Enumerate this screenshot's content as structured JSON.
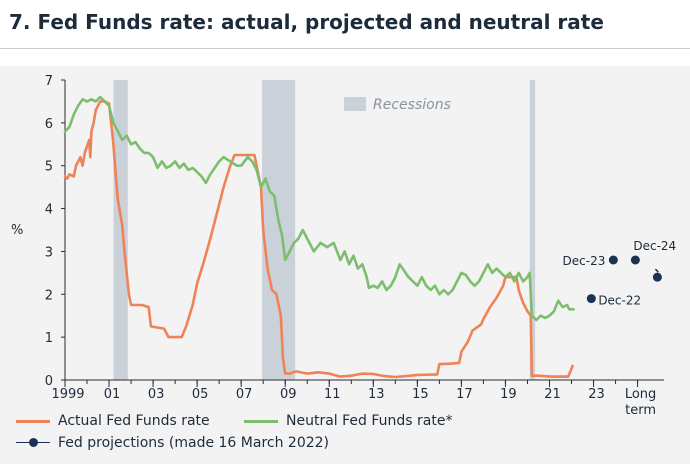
{
  "title": "7. Fed Funds rate: actual, projected and neutral rate",
  "colors": {
    "actual": "#f08257",
    "neutral": "#7dbe6e",
    "projection": "#1c3253",
    "recession": "#cbd1d8",
    "axis": "#2b2b2b",
    "panel_bg": "#f3f3f3"
  },
  "chart_data": {
    "type": "line",
    "ylabel": "%",
    "ylim": [
      0,
      7
    ],
    "y_ticks": [
      0,
      1,
      2,
      3,
      4,
      5,
      6,
      7
    ],
    "xlim": [
      1999,
      2026.2
    ],
    "x_ticks": [
      {
        "x": 1999,
        "label": "1999"
      },
      {
        "x": 2001,
        "label": "01"
      },
      {
        "x": 2003,
        "label": "03"
      },
      {
        "x": 2005,
        "label": "05"
      },
      {
        "x": 2007,
        "label": "07"
      },
      {
        "x": 2009,
        "label": "09"
      },
      {
        "x": 2011,
        "label": "11"
      },
      {
        "x": 2013,
        "label": "13"
      },
      {
        "x": 2015,
        "label": "15"
      },
      {
        "x": 2017,
        "label": "17"
      },
      {
        "x": 2019,
        "label": "19"
      },
      {
        "x": 2021,
        "label": "21"
      },
      {
        "x": 2023,
        "label": "23"
      },
      {
        "x": 2025,
        "label": "Long\nterm"
      }
    ],
    "recessions": [
      {
        "start": 2001.2,
        "end": 2001.85
      },
      {
        "start": 2007.95,
        "end": 2009.45
      },
      {
        "start": 2020.1,
        "end": 2020.35
      }
    ],
    "recession_label": "Recessions",
    "series": [
      {
        "name": "Actual Fed Funds rate",
        "points": [
          [
            1999.0,
            4.75
          ],
          [
            1999.1,
            4.7
          ],
          [
            1999.2,
            4.8
          ],
          [
            1999.4,
            4.75
          ],
          [
            1999.5,
            5.0
          ],
          [
            1999.7,
            5.2
          ],
          [
            1999.8,
            5.0
          ],
          [
            1999.9,
            5.3
          ],
          [
            2000.0,
            5.45
          ],
          [
            2000.1,
            5.6
          ],
          [
            2000.15,
            5.2
          ],
          [
            2000.2,
            5.8
          ],
          [
            2000.3,
            6.0
          ],
          [
            2000.4,
            6.3
          ],
          [
            2000.6,
            6.5
          ],
          [
            2000.8,
            6.5
          ],
          [
            2001.0,
            6.45
          ],
          [
            2001.1,
            6.0
          ],
          [
            2001.2,
            5.5
          ],
          [
            2001.3,
            4.8
          ],
          [
            2001.4,
            4.2
          ],
          [
            2001.5,
            3.9
          ],
          [
            2001.6,
            3.6
          ],
          [
            2001.7,
            3.0
          ],
          [
            2001.8,
            2.5
          ],
          [
            2001.9,
            2.0
          ],
          [
            2002.0,
            1.75
          ],
          [
            2002.5,
            1.75
          ],
          [
            2002.8,
            1.7
          ],
          [
            2002.9,
            1.25
          ],
          [
            2003.5,
            1.2
          ],
          [
            2003.7,
            1.0
          ],
          [
            2004.3,
            1.0
          ],
          [
            2004.5,
            1.25
          ],
          [
            2004.8,
            1.75
          ],
          [
            2005.0,
            2.25
          ],
          [
            2005.3,
            2.75
          ],
          [
            2005.6,
            3.3
          ],
          [
            2005.9,
            3.9
          ],
          [
            2006.2,
            4.5
          ],
          [
            2006.5,
            5.0
          ],
          [
            2006.7,
            5.25
          ],
          [
            2007.6,
            5.25
          ],
          [
            2007.7,
            5.0
          ],
          [
            2007.9,
            4.5
          ],
          [
            2008.0,
            3.5
          ],
          [
            2008.2,
            2.6
          ],
          [
            2008.4,
            2.1
          ],
          [
            2008.6,
            2.0
          ],
          [
            2008.8,
            1.5
          ],
          [
            2008.9,
            0.5
          ],
          [
            2009.0,
            0.15
          ],
          [
            2009.2,
            0.15
          ],
          [
            2009.5,
            0.2
          ],
          [
            2010.0,
            0.15
          ],
          [
            2010.5,
            0.18
          ],
          [
            2011.0,
            0.15
          ],
          [
            2011.5,
            0.08
          ],
          [
            2012.0,
            0.1
          ],
          [
            2012.5,
            0.15
          ],
          [
            2013.0,
            0.14
          ],
          [
            2013.5,
            0.09
          ],
          [
            2014.0,
            0.07
          ],
          [
            2014.5,
            0.09
          ],
          [
            2015.0,
            0.12
          ],
          [
            2015.9,
            0.13
          ],
          [
            2016.0,
            0.37
          ],
          [
            2016.5,
            0.38
          ],
          [
            2016.9,
            0.4
          ],
          [
            2017.0,
            0.66
          ],
          [
            2017.3,
            0.9
          ],
          [
            2017.5,
            1.15
          ],
          [
            2017.9,
            1.3
          ],
          [
            2018.0,
            1.42
          ],
          [
            2018.3,
            1.7
          ],
          [
            2018.6,
            1.92
          ],
          [
            2018.9,
            2.2
          ],
          [
            2019.0,
            2.4
          ],
          [
            2019.5,
            2.4
          ],
          [
            2019.6,
            2.1
          ],
          [
            2019.8,
            1.8
          ],
          [
            2020.0,
            1.6
          ],
          [
            2020.15,
            1.5
          ],
          [
            2020.2,
            0.1
          ],
          [
            2020.5,
            0.1
          ],
          [
            2021.0,
            0.08
          ],
          [
            2021.5,
            0.08
          ],
          [
            2021.85,
            0.08
          ],
          [
            2021.95,
            0.2
          ],
          [
            2022.05,
            0.33
          ]
        ]
      },
      {
        "name": "Neutral Fed Funds rate*",
        "points": [
          [
            1999.0,
            5.8
          ],
          [
            1999.2,
            5.9
          ],
          [
            1999.4,
            6.2
          ],
          [
            1999.6,
            6.4
          ],
          [
            1999.8,
            6.55
          ],
          [
            2000.0,
            6.5
          ],
          [
            2000.2,
            6.55
          ],
          [
            2000.4,
            6.5
          ],
          [
            2000.6,
            6.6
          ],
          [
            2000.8,
            6.5
          ],
          [
            2001.0,
            6.4
          ],
          [
            2001.2,
            6.0
          ],
          [
            2001.4,
            5.8
          ],
          [
            2001.6,
            5.6
          ],
          [
            2001.8,
            5.7
          ],
          [
            2002.0,
            5.5
          ],
          [
            2002.2,
            5.55
          ],
          [
            2002.4,
            5.4
          ],
          [
            2002.6,
            5.3
          ],
          [
            2002.8,
            5.3
          ],
          [
            2003.0,
            5.2
          ],
          [
            2003.2,
            4.95
          ],
          [
            2003.4,
            5.1
          ],
          [
            2003.6,
            4.95
          ],
          [
            2003.8,
            5.0
          ],
          [
            2004.0,
            5.1
          ],
          [
            2004.2,
            4.95
          ],
          [
            2004.4,
            5.05
          ],
          [
            2004.6,
            4.9
          ],
          [
            2004.8,
            4.95
          ],
          [
            2005.0,
            4.85
          ],
          [
            2005.2,
            4.75
          ],
          [
            2005.4,
            4.6
          ],
          [
            2005.6,
            4.8
          ],
          [
            2005.8,
            4.95
          ],
          [
            2006.0,
            5.1
          ],
          [
            2006.2,
            5.2
          ],
          [
            2006.5,
            5.1
          ],
          [
            2006.8,
            5.0
          ],
          [
            2007.0,
            5.0
          ],
          [
            2007.3,
            5.2
          ],
          [
            2007.5,
            5.1
          ],
          [
            2007.7,
            4.9
          ],
          [
            2007.9,
            4.5
          ],
          [
            2008.1,
            4.7
          ],
          [
            2008.3,
            4.4
          ],
          [
            2008.5,
            4.3
          ],
          [
            2008.7,
            3.7
          ],
          [
            2008.85,
            3.4
          ],
          [
            2009.0,
            2.8
          ],
          [
            2009.2,
            3.0
          ],
          [
            2009.4,
            3.2
          ],
          [
            2009.6,
            3.3
          ],
          [
            2009.8,
            3.5
          ],
          [
            2010.0,
            3.3
          ],
          [
            2010.3,
            3.0
          ],
          [
            2010.6,
            3.2
          ],
          [
            2010.9,
            3.1
          ],
          [
            2011.2,
            3.2
          ],
          [
            2011.5,
            2.8
          ],
          [
            2011.7,
            3.0
          ],
          [
            2011.9,
            2.7
          ],
          [
            2012.1,
            2.9
          ],
          [
            2012.3,
            2.6
          ],
          [
            2012.5,
            2.7
          ],
          [
            2012.7,
            2.4
          ],
          [
            2012.8,
            2.15
          ],
          [
            2013.0,
            2.2
          ],
          [
            2013.2,
            2.15
          ],
          [
            2013.4,
            2.3
          ],
          [
            2013.6,
            2.1
          ],
          [
            2013.8,
            2.2
          ],
          [
            2014.0,
            2.4
          ],
          [
            2014.2,
            2.7
          ],
          [
            2014.4,
            2.55
          ],
          [
            2014.6,
            2.4
          ],
          [
            2014.8,
            2.3
          ],
          [
            2015.0,
            2.2
          ],
          [
            2015.2,
            2.4
          ],
          [
            2015.4,
            2.2
          ],
          [
            2015.6,
            2.1
          ],
          [
            2015.8,
            2.2
          ],
          [
            2016.0,
            2.0
          ],
          [
            2016.2,
            2.1
          ],
          [
            2016.4,
            2.0
          ],
          [
            2016.6,
            2.1
          ],
          [
            2016.8,
            2.3
          ],
          [
            2017.0,
            2.5
          ],
          [
            2017.2,
            2.45
          ],
          [
            2017.4,
            2.3
          ],
          [
            2017.6,
            2.2
          ],
          [
            2017.8,
            2.3
          ],
          [
            2018.0,
            2.5
          ],
          [
            2018.2,
            2.7
          ],
          [
            2018.4,
            2.5
          ],
          [
            2018.6,
            2.6
          ],
          [
            2018.8,
            2.5
          ],
          [
            2019.0,
            2.4
          ],
          [
            2019.2,
            2.5
          ],
          [
            2019.4,
            2.3
          ],
          [
            2019.6,
            2.5
          ],
          [
            2019.8,
            2.3
          ],
          [
            2020.0,
            2.4
          ],
          [
            2020.1,
            2.5
          ],
          [
            2020.2,
            1.5
          ],
          [
            2020.4,
            1.4
          ],
          [
            2020.6,
            1.5
          ],
          [
            2020.8,
            1.45
          ],
          [
            2021.0,
            1.5
          ],
          [
            2021.2,
            1.6
          ],
          [
            2021.4,
            1.85
          ],
          [
            2021.6,
            1.7
          ],
          [
            2021.8,
            1.75
          ],
          [
            2021.9,
            1.65
          ],
          [
            2022.1,
            1.65
          ]
        ]
      }
    ],
    "projections": {
      "name": "Fed projections (made 16 March 2022)",
      "points": [
        {
          "x": 2022.9,
          "y": 1.9,
          "label": "Dec-22"
        },
        {
          "x": 2023.9,
          "y": 2.8,
          "label": "Dec-23"
        },
        {
          "x": 2024.9,
          "y": 2.8,
          "label": "Dec-24"
        },
        {
          "x": 2025.9,
          "y": 2.4,
          "label": ""
        }
      ]
    }
  }
}
